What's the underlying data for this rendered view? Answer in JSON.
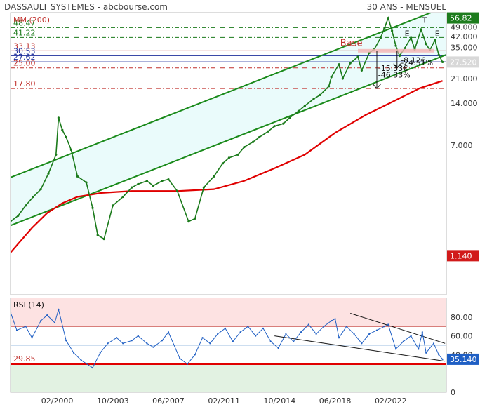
{
  "header": {
    "title": "DASSAULT SYSTEMES - abcbourse.com",
    "period": "30 ANS - MENSUEL"
  },
  "chart_data": [
    {
      "type": "line",
      "title": "DASSAULT SYSTEMES",
      "indicator_label": "MM (200)",
      "yaxis_ticks": [
        7.0,
        14.0,
        21.0,
        28.0,
        35.0,
        42.0,
        49.0
      ],
      "ylim": [
        0.6,
        62
      ],
      "last_price": 27.52,
      "high_value": 56.82,
      "low_value": 1.14,
      "levels": [
        {
          "value": 48.47,
          "label": "48.47",
          "color": "#1a7a1a",
          "style": "dashdot"
        },
        {
          "value": 41.22,
          "label": "41.22",
          "color": "#1a7a1a",
          "style": "dashdot"
        },
        {
          "value": 33.13,
          "label": "33.13",
          "color": "#c0302c",
          "style": "solid"
        },
        {
          "value": 30.53,
          "label": "30.53",
          "color": "#1f2f9c",
          "style": "solid"
        },
        {
          "value": 27.62,
          "label": "27.62",
          "color": "#1f2f9c",
          "style": "solid"
        },
        {
          "value": 25.0,
          "label": "25.00",
          "color": "#c0302c",
          "style": "dashdot"
        },
        {
          "value": 17.8,
          "label": "17.80",
          "color": "#c0302c",
          "style": "dashdot"
        }
      ],
      "annotations": {
        "base": "Base",
        "t": "T",
        "e1": "E",
        "e2": "E",
        "drop1_value": "-8.12€",
        "drop1_pct": "-24.51%",
        "drop2_value": "-15.33€",
        "drop2_pct": "-46.33%"
      },
      "x_tick_labels": [
        "02/2000",
        "10/2003",
        "06/2007",
        "02/2011",
        "10/2014",
        "06/2018",
        "02/2022"
      ],
      "price_series": [
        [
          "1997-01",
          2.0
        ],
        [
          "1997-07",
          2.2
        ],
        [
          "1998-01",
          2.6
        ],
        [
          "1998-07",
          3.0
        ],
        [
          "1999-01",
          3.4
        ],
        [
          "1999-07",
          4.4
        ],
        [
          "2000-01",
          6.0
        ],
        [
          "2000-03",
          11.0
        ],
        [
          "2000-06",
          9.0
        ],
        [
          "2000-09",
          8.0
        ],
        [
          "2001-01",
          6.5
        ],
        [
          "2001-06",
          4.2
        ],
        [
          "2002-01",
          3.8
        ],
        [
          "2002-06",
          2.5
        ],
        [
          "2002-10",
          1.6
        ],
        [
          "2003-03",
          1.5
        ],
        [
          "2003-10",
          2.6
        ],
        [
          "2004-06",
          3.0
        ],
        [
          "2005-01",
          3.5
        ],
        [
          "2005-06",
          3.7
        ],
        [
          "2006-01",
          3.9
        ],
        [
          "2006-06",
          3.6
        ],
        [
          "2007-01",
          3.9
        ],
        [
          "2007-06",
          4.0
        ],
        [
          "2008-01",
          3.3
        ],
        [
          "2008-10",
          2.0
        ],
        [
          "2009-03",
          2.1
        ],
        [
          "2009-10",
          3.5
        ],
        [
          "2010-06",
          4.2
        ],
        [
          "2011-01",
          5.2
        ],
        [
          "2011-06",
          5.7
        ],
        [
          "2012-01",
          6.0
        ],
        [
          "2012-06",
          6.8
        ],
        [
          "2013-01",
          7.4
        ],
        [
          "2013-06",
          8.0
        ],
        [
          "2014-01",
          8.8
        ],
        [
          "2014-06",
          9.6
        ],
        [
          "2015-01",
          10.0
        ],
        [
          "2015-06",
          11.0
        ],
        [
          "2016-01",
          12.3
        ],
        [
          "2016-06",
          13.4
        ],
        [
          "2017-01",
          15.0
        ],
        [
          "2017-06",
          16.0
        ],
        [
          "2018-01",
          18.5
        ],
        [
          "2018-03",
          21.5
        ],
        [
          "2018-09",
          26.5
        ],
        [
          "2018-12",
          21.0
        ],
        [
          "2019-06",
          27.0
        ],
        [
          "2019-12",
          30.0
        ],
        [
          "2020-03",
          24.0
        ],
        [
          "2020-09",
          32.0
        ],
        [
          "2021-01",
          34.0
        ],
        [
          "2021-06",
          41.0
        ],
        [
          "2021-09",
          48.0
        ],
        [
          "2021-12",
          56.82
        ],
        [
          "2022-03",
          46.0
        ],
        [
          "2022-06",
          36.0
        ],
        [
          "2022-09",
          30.5
        ],
        [
          "2023-01",
          34.5
        ],
        [
          "2023-06",
          41.0
        ],
        [
          "2023-09",
          34.0
        ],
        [
          "2024-02",
          47.0
        ],
        [
          "2024-06",
          37.0
        ],
        [
          "2024-09",
          33.5
        ],
        [
          "2025-01",
          39.5
        ],
        [
          "2025-04",
          31.0
        ],
        [
          "2025-07",
          27.52
        ]
      ],
      "ma200_series": [
        [
          "1997-01",
          1.2
        ],
        [
          "1998-06",
          1.8
        ],
        [
          "1999-06",
          2.3
        ],
        [
          "2000-06",
          2.7
        ],
        [
          "2001-06",
          3.0
        ],
        [
          "2003-01",
          3.2
        ],
        [
          "2005-01",
          3.3
        ],
        [
          "2008-01",
          3.3
        ],
        [
          "2010-06",
          3.4
        ],
        [
          "2012-06",
          3.9
        ],
        [
          "2014-06",
          4.8
        ],
        [
          "2016-06",
          6.0
        ],
        [
          "2018-06",
          8.6
        ],
        [
          "2020-06",
          11.5
        ],
        [
          "2022-06",
          14.7
        ],
        [
          "2024-01",
          17.9
        ],
        [
          "2025-07",
          20.2
        ]
      ]
    },
    {
      "type": "line",
      "title": "RSI (14)",
      "threshold": 29.85,
      "ylim": [
        0,
        100
      ],
      "yaxis_ticks": [
        40,
        60,
        80
      ],
      "last_value": 35.14,
      "series": [
        [
          "1997-01",
          85
        ],
        [
          "1997-06",
          66
        ],
        [
          "1998-01",
          70
        ],
        [
          "1998-06",
          58
        ],
        [
          "1999-01",
          76
        ],
        [
          "1999-06",
          82
        ],
        [
          "1999-12",
          74
        ],
        [
          "2000-03",
          88
        ],
        [
          "2000-09",
          55
        ],
        [
          "2001-03",
          42
        ],
        [
          "2001-09",
          34
        ],
        [
          "2002-06",
          26
        ],
        [
          "2002-12",
          42
        ],
        [
          "2003-06",
          52
        ],
        [
          "2004-01",
          58
        ],
        [
          "2004-06",
          52
        ],
        [
          "2005-01",
          55
        ],
        [
          "2005-06",
          60
        ],
        [
          "2006-01",
          52
        ],
        [
          "2006-06",
          48
        ],
        [
          "2007-01",
          55
        ],
        [
          "2007-06",
          64
        ],
        [
          "2008-03",
          36
        ],
        [
          "2008-09",
          30
        ],
        [
          "2009-03",
          40
        ],
        [
          "2009-09",
          58
        ],
        [
          "2010-03",
          52
        ],
        [
          "2010-09",
          62
        ],
        [
          "2011-03",
          68
        ],
        [
          "2011-09",
          54
        ],
        [
          "2012-03",
          64
        ],
        [
          "2012-09",
          70
        ],
        [
          "2013-03",
          60
        ],
        [
          "2013-09",
          68
        ],
        [
          "2014-03",
          54
        ],
        [
          "2014-09",
          47
        ],
        [
          "2015-03",
          62
        ],
        [
          "2015-09",
          54
        ],
        [
          "2016-03",
          64
        ],
        [
          "2016-09",
          72
        ],
        [
          "2017-03",
          62
        ],
        [
          "2017-09",
          70
        ],
        [
          "2018-03",
          76
        ],
        [
          "2018-06",
          78
        ],
        [
          "2018-09",
          58
        ],
        [
          "2019-03",
          70
        ],
        [
          "2019-09",
          62
        ],
        [
          "2020-03",
          52
        ],
        [
          "2020-09",
          62
        ],
        [
          "2021-03",
          66
        ],
        [
          "2021-09",
          70
        ],
        [
          "2021-12",
          72
        ],
        [
          "2022-06",
          46
        ],
        [
          "2022-12",
          54
        ],
        [
          "2023-06",
          60
        ],
        [
          "2023-12",
          46
        ],
        [
          "2024-03",
          64
        ],
        [
          "2024-06",
          42
        ],
        [
          "2024-12",
          52
        ],
        [
          "2025-04",
          40
        ],
        [
          "2025-07",
          35.14
        ]
      ]
    }
  ]
}
